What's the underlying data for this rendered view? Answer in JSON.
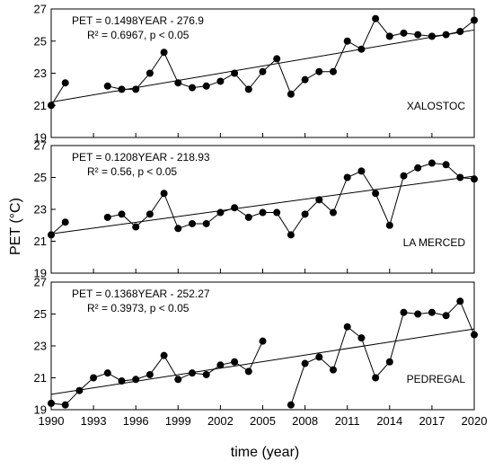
{
  "chart_data": {
    "type": "line",
    "xlabel": "time (year)",
    "ylabel": "PET (°C)",
    "x_ticks": [
      1990,
      1993,
      1996,
      1999,
      2002,
      2005,
      2008,
      2011,
      2014,
      2017,
      2020
    ],
    "y_ticks": [
      19,
      21,
      23,
      25,
      27
    ],
    "panels": [
      {
        "station": "XALOSTOC",
        "equation": "PET = 0.1498YEAR - 276.9",
        "stats": "R² = 0.6967, p < 0.05",
        "ylim": [
          19,
          27
        ],
        "trend": {
          "slope": 0.1498,
          "intercept": -276.9
        },
        "segments": [
          {
            "x": [
              1990,
              1991
            ],
            "y": [
              21.0,
              22.4
            ]
          },
          {
            "x": [
              1994,
              1995,
              1996,
              1997,
              1998,
              1999,
              2000,
              2001,
              2002,
              2003,
              2004,
              2005,
              2006,
              2007,
              2008,
              2009,
              2010,
              2011,
              2012,
              2013,
              2014,
              2015,
              2016,
              2017,
              2018,
              2019,
              2020
            ],
            "y": [
              22.2,
              22.0,
              22.0,
              23.0,
              24.3,
              22.4,
              22.1,
              22.2,
              22.5,
              23.0,
              22.0,
              23.1,
              23.9,
              21.7,
              22.6,
              23.1,
              23.1,
              25.0,
              24.5,
              26.4,
              25.3,
              25.5,
              25.4,
              25.3,
              25.4,
              25.6,
              26.3
            ]
          }
        ]
      },
      {
        "station": "LA MERCED",
        "equation": "PET = 0.1208YEAR - 218.93",
        "stats": "R² = 0.56, p < 0.05",
        "ylim": [
          19,
          27
        ],
        "trend": {
          "slope": 0.1208,
          "intercept": -218.93
        },
        "segments": [
          {
            "x": [
              1990,
              1991
            ],
            "y": [
              21.4,
              22.2
            ]
          },
          {
            "x": [
              1994,
              1995,
              1996,
              1997,
              1998,
              1999,
              2000,
              2001,
              2002,
              2003,
              2004,
              2005,
              2006,
              2007,
              2008,
              2009,
              2010,
              2011,
              2012,
              2013,
              2014,
              2015,
              2016,
              2017,
              2018,
              2019,
              2020
            ],
            "y": [
              22.5,
              22.7,
              21.9,
              22.7,
              24.0,
              21.8,
              22.1,
              22.1,
              22.8,
              23.1,
              22.5,
              22.8,
              22.8,
              21.4,
              22.7,
              23.6,
              22.8,
              25.0,
              25.4,
              24.0,
              22.0,
              25.1,
              25.6,
              25.9,
              25.8,
              25.0,
              24.9
            ]
          }
        ]
      },
      {
        "station": "PEDREGAL",
        "equation": "PET = 0.1368YEAR - 252.27",
        "stats": "R² = 0.3973, p < 0.05",
        "ylim": [
          19,
          27
        ],
        "trend": {
          "slope": 0.1368,
          "intercept": -252.27
        },
        "segments": [
          {
            "x": [
              1990,
              1991,
              1992,
              1993,
              1994,
              1995,
              1996,
              1997,
              1998,
              1999,
              2000,
              2001,
              2002,
              2003,
              2004,
              2005
            ],
            "y": [
              19.4,
              19.3,
              20.2,
              21.0,
              21.3,
              20.8,
              20.9,
              21.2,
              22.4,
              20.9,
              21.3,
              21.2,
              21.8,
              22.0,
              21.4,
              23.3
            ]
          },
          {
            "x": [
              2007,
              2008,
              2009,
              2010,
              2011,
              2012,
              2013,
              2014,
              2015,
              2016,
              2017,
              2018,
              2019,
              2020
            ],
            "y": [
              19.3,
              21.9,
              22.3,
              21.5,
              24.2,
              23.5,
              21.0,
              22.0,
              25.1,
              25.0,
              25.1,
              24.9,
              25.8,
              23.7
            ]
          }
        ]
      }
    ]
  }
}
